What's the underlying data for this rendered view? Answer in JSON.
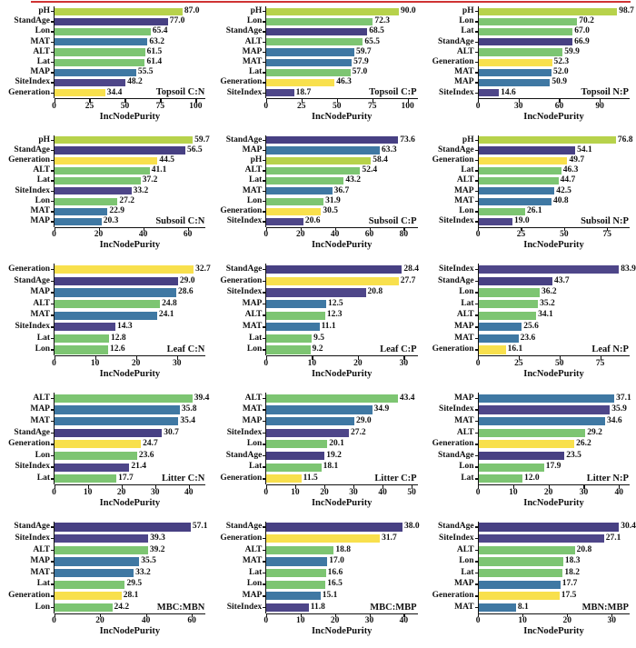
{
  "figure": {
    "axis_label": "IncNodePurity",
    "top_rule_color": "#cf3333"
  },
  "palette": {
    "pH": "#b7d24b",
    "StandAge": "#474083",
    "SiteIndex": "#4e4689",
    "Lon": "#7dc572",
    "Lat": "#7dc572",
    "ALT": "#7dc572",
    "MAT": "#3f78a3",
    "MAP": "#3f78a3",
    "Generation": "#f8e04d"
  },
  "chart_data": [
    {
      "type": "bar",
      "orientation": "horizontal",
      "title": "Topsoil C:N",
      "xlabel": "IncNodePurity",
      "xmax": 107,
      "xticks": [
        0,
        25,
        50,
        75,
        100
      ],
      "categories": [
        "pH",
        "StandAge",
        "Lon",
        "MAT",
        "ALT",
        "Lat",
        "MAP",
        "SiteIndex",
        "Generation"
      ],
      "values": [
        "87.0",
        "77.0",
        "65.4",
        "63.2",
        "61.5",
        "61.4",
        "55.5",
        "48.2",
        "34.4"
      ]
    },
    {
      "type": "bar",
      "orientation": "horizontal",
      "title": "Topsoil C:P",
      "xlabel": "IncNodePurity",
      "xmax": 107,
      "xticks": [
        0,
        25,
        50,
        75,
        100
      ],
      "categories": [
        "pH",
        "Lon",
        "StandAge",
        "ALT",
        "MAP",
        "MAT",
        "Lat",
        "Generation",
        "SiteIndex"
      ],
      "values": [
        "90.0",
        "72.3",
        "68.5",
        "65.5",
        "59.7",
        "57.9",
        "57.0",
        "46.3",
        "18.7"
      ]
    },
    {
      "type": "bar",
      "orientation": "horizontal",
      "title": "Topsoil N:P",
      "xlabel": "IncNodePurity",
      "xmax": 112,
      "xticks": [
        0,
        30,
        60,
        90
      ],
      "categories": [
        "pH",
        "Lon",
        "Lat",
        "StandAge",
        "ALT",
        "Generation",
        "MAT",
        "MAP",
        "SiteIndex"
      ],
      "values": [
        "98.7",
        "70.2",
        "67.0",
        "66.9",
        "59.9",
        "52.3",
        "52.0",
        "50.9",
        "14.6"
      ]
    },
    {
      "type": "bar",
      "orientation": "horizontal",
      "title": "Subsoil C:N",
      "xlabel": "IncNodePurity",
      "xmax": 68,
      "xticks": [
        0,
        20,
        40,
        60
      ],
      "categories": [
        "pH",
        "StandAge",
        "Generation",
        "ALT",
        "Lat",
        "SiteIndex",
        "Lon",
        "MAT",
        "MAP"
      ],
      "values": [
        "59.7",
        "56.5",
        "44.5",
        "41.1",
        "37.2",
        "33.2",
        "27.2",
        "22.9",
        "20.3"
      ]
    },
    {
      "type": "bar",
      "orientation": "horizontal",
      "title": "Subsoil C:P",
      "xlabel": "IncNodePurity",
      "xmax": 88,
      "xticks": [
        0,
        20,
        40,
        60,
        80
      ],
      "categories": [
        "StandAge",
        "MAP",
        "pH",
        "ALT",
        "Lat",
        "MAT",
        "Lon",
        "Generation",
        "SiteIndex"
      ],
      "values": [
        "73.6",
        "63.3",
        "58.4",
        "52.4",
        "43.2",
        "36.7",
        "31.9",
        "30.5",
        "20.6"
      ]
    },
    {
      "type": "bar",
      "orientation": "horizontal",
      "title": "Subsoil N:P",
      "xlabel": "IncNodePurity",
      "xmax": 88,
      "xticks": [
        0,
        25,
        50,
        75
      ],
      "categories": [
        "pH",
        "StandAge",
        "Generation",
        "Lat",
        "ALT",
        "MAP",
        "MAT",
        "Lon",
        "SiteIndex"
      ],
      "values": [
        "76.8",
        "54.1",
        "49.7",
        "46.3",
        "44.7",
        "42.5",
        "40.8",
        "26.1",
        "19.0"
      ]
    },
    {
      "type": "bar",
      "orientation": "horizontal",
      "title": "Leaf C:N",
      "xlabel": "IncNodePurity",
      "xmax": 37,
      "xticks": [
        0,
        10,
        20,
        30
      ],
      "categories": [
        "Generation",
        "StandAge",
        "MAP",
        "ALT",
        "MAT",
        "SiteIndex",
        "Lat",
        "Lon"
      ],
      "values": [
        "32.7",
        "29.0",
        "28.6",
        "24.8",
        "24.1",
        "14.3",
        "12.8",
        "12.6"
      ]
    },
    {
      "type": "bar",
      "orientation": "horizontal",
      "title": "Leaf C:P",
      "xlabel": "IncNodePurity",
      "xmax": 33,
      "xticks": [
        0,
        10,
        20,
        30
      ],
      "categories": [
        "StandAge",
        "Generation",
        "SiteIndex",
        "MAP",
        "ALT",
        "MAT",
        "Lat",
        "Lon"
      ],
      "values": [
        "28.4",
        "27.7",
        "20.8",
        "12.5",
        "12.3",
        "11.1",
        "9.5",
        "9.2"
      ]
    },
    {
      "type": "bar",
      "orientation": "horizontal",
      "title": "Leaf N:P",
      "xlabel": "IncNodePurity",
      "xmax": 93,
      "xticks": [
        0,
        25,
        50,
        75
      ],
      "categories": [
        "SiteIndex",
        "StandAge",
        "Lon",
        "Lat",
        "ALT",
        "MAP",
        "MAT",
        "Generation"
      ],
      "values": [
        "83.9",
        "43.7",
        "36.2",
        "35.2",
        "34.1",
        "25.6",
        "23.6",
        "16.1"
      ]
    },
    {
      "type": "bar",
      "orientation": "horizontal",
      "title": "Litter C:N",
      "xlabel": "IncNodePurity",
      "xmax": 45,
      "xticks": [
        0,
        10,
        20,
        30,
        40
      ],
      "categories": [
        "ALT",
        "MAP",
        "MAT",
        "StandAge",
        "Generation",
        "Lon",
        "SiteIndex",
        "Lat"
      ],
      "values": [
        "39.4",
        "35.8",
        "35.4",
        "30.7",
        "24.7",
        "23.6",
        "21.4",
        "17.7"
      ]
    },
    {
      "type": "bar",
      "orientation": "horizontal",
      "title": "Litter C:P",
      "xlabel": "IncNodePurity",
      "xmax": 52,
      "xticks": [
        0,
        10,
        20,
        30,
        40,
        50
      ],
      "categories": [
        "ALT",
        "MAT",
        "MAP",
        "SiteIndex",
        "Lon",
        "StandAge",
        "Lat",
        "Generation"
      ],
      "values": [
        "43.4",
        "34.9",
        "29.0",
        "27.2",
        "20.1",
        "19.2",
        "18.1",
        "11.5"
      ]
    },
    {
      "type": "bar",
      "orientation": "horizontal",
      "title": "Litter N:P",
      "xlabel": "IncNodePurity",
      "xmax": 43,
      "xticks": [
        0,
        10,
        20,
        30,
        40
      ],
      "categories": [
        "MAP",
        "SiteIndex",
        "MAT",
        "ALT",
        "Generation",
        "StandAge",
        "Lon",
        "Lat"
      ],
      "values": [
        "37.1",
        "35.9",
        "34.6",
        "29.2",
        "26.2",
        "23.5",
        "17.9",
        "12.0"
      ]
    },
    {
      "type": "bar",
      "orientation": "horizontal",
      "title": "MBC:MBN",
      "xlabel": "IncNodePurity",
      "xmax": 66,
      "xticks": [
        0,
        20,
        40,
        60
      ],
      "categories": [
        "StandAge",
        "SiteIndex",
        "ALT",
        "MAP",
        "MAT",
        "Lat",
        "Generation",
        "Lon"
      ],
      "values": [
        "57.1",
        "39.3",
        "39.2",
        "35.5",
        "33.2",
        "29.5",
        "28.1",
        "24.2"
      ]
    },
    {
      "type": "bar",
      "orientation": "horizontal",
      "title": "MBC:MBP",
      "xlabel": "IncNodePurity",
      "xmax": 44,
      "xticks": [
        0,
        10,
        20,
        30,
        40
      ],
      "categories": [
        "StandAge",
        "Generation",
        "ALT",
        "MAT",
        "Lat",
        "Lon",
        "MAP",
        "SiteIndex"
      ],
      "values": [
        "38.0",
        "31.7",
        "18.8",
        "17.0",
        "16.6",
        "16.5",
        "15.1",
        "11.8"
      ]
    },
    {
      "type": "bar",
      "orientation": "horizontal",
      "title": "MBN:MBP",
      "xlabel": "IncNodePurity",
      "xmax": 34,
      "xticks": [
        0,
        10,
        20,
        30
      ],
      "categories": [
        "StandAge",
        "SiteIndex",
        "ALT",
        "Lon",
        "Lat",
        "MAP",
        "Generation",
        "MAT"
      ],
      "values": [
        "30.4",
        "27.1",
        "20.8",
        "18.3",
        "18.2",
        "17.7",
        "17.5",
        "8.1"
      ]
    }
  ]
}
